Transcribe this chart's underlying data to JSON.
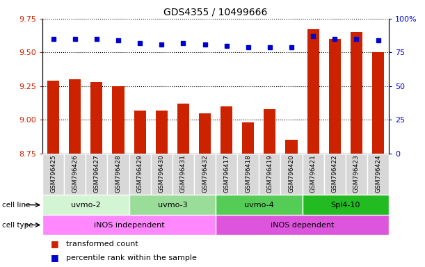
{
  "title": "GDS4355 / 10499666",
  "samples": [
    "GSM796425",
    "GSM796426",
    "GSM796427",
    "GSM796428",
    "GSM796429",
    "GSM796430",
    "GSM796431",
    "GSM796432",
    "GSM796417",
    "GSM796418",
    "GSM796419",
    "GSM796420",
    "GSM796421",
    "GSM796422",
    "GSM796423",
    "GSM796424"
  ],
  "transformed_count": [
    9.29,
    9.3,
    9.28,
    9.25,
    9.07,
    9.07,
    9.12,
    9.05,
    9.1,
    8.98,
    9.08,
    8.85,
    9.67,
    9.6,
    9.65,
    9.5
  ],
  "percentile_rank": [
    85,
    85,
    85,
    84,
    82,
    81,
    82,
    81,
    80,
    79,
    79,
    79,
    87,
    85,
    85,
    84
  ],
  "cell_lines": [
    {
      "label": "uvmo-2",
      "start": 0,
      "end": 4,
      "color": "#d4f5d4"
    },
    {
      "label": "uvmo-3",
      "start": 4,
      "end": 8,
      "color": "#99dd99"
    },
    {
      "label": "uvmo-4",
      "start": 8,
      "end": 12,
      "color": "#55cc55"
    },
    {
      "label": "Spl4-10",
      "start": 12,
      "end": 16,
      "color": "#22bb22"
    }
  ],
  "cell_types": [
    {
      "label": "iNOS independent",
      "start": 0,
      "end": 8,
      "color": "#ff88ff"
    },
    {
      "label": "iNOS dependent",
      "start": 8,
      "end": 16,
      "color": "#dd55dd"
    }
  ],
  "ylim_left": [
    8.75,
    9.75
  ],
  "yticks_left": [
    8.75,
    9.0,
    9.25,
    9.5,
    9.75
  ],
  "ylim_right": [
    0,
    100
  ],
  "yticks_right": [
    0,
    25,
    50,
    75,
    100
  ],
  "bar_color": "#cc2200",
  "dot_color": "#0000cc",
  "bar_width": 0.55,
  "background_color": "#ffffff",
  "legend_items": [
    {
      "label": "transformed count",
      "color": "#cc2200"
    },
    {
      "label": "percentile rank within the sample",
      "color": "#0000cc"
    }
  ]
}
